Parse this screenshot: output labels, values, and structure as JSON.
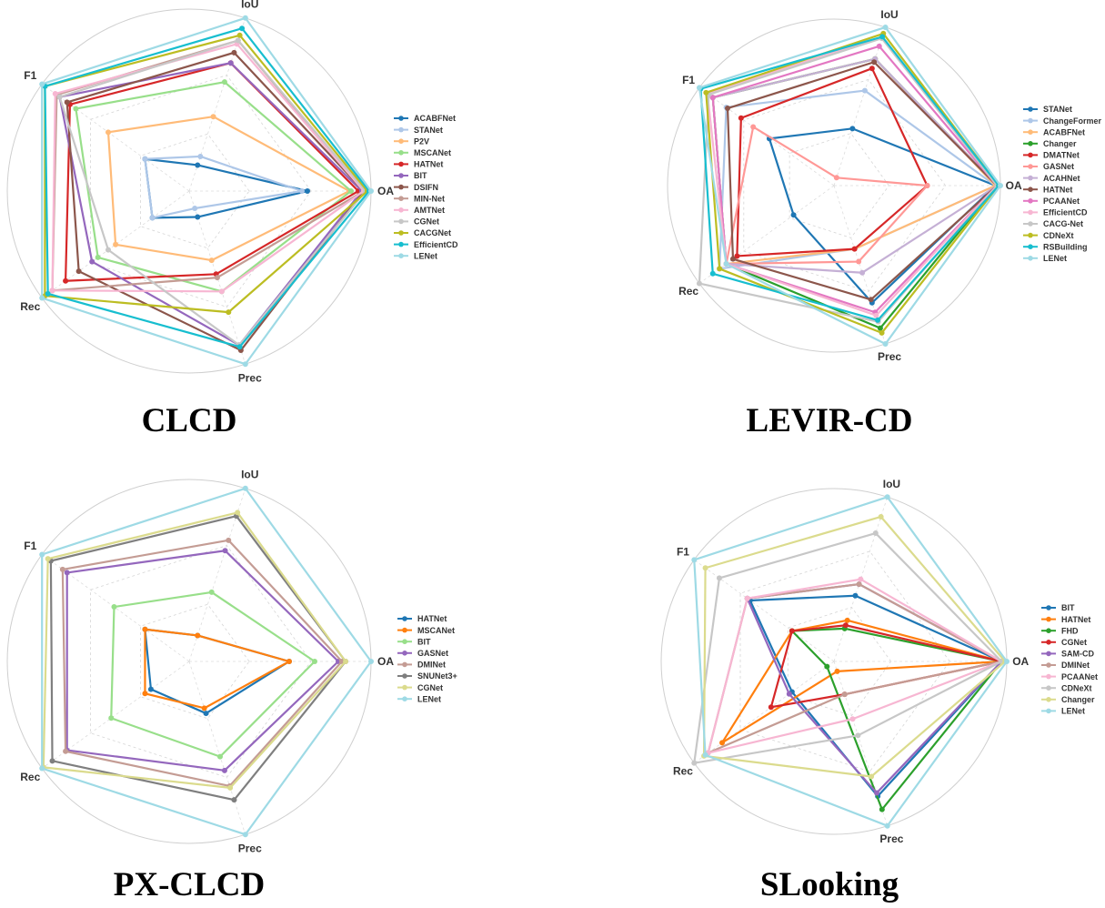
{
  "axes": [
    "OA",
    "IoU",
    "F1",
    "Rec",
    "Prec"
  ],
  "chart_data": [
    {
      "type": "radar",
      "title": "CLCD",
      "axes": [
        "OA",
        "IoU",
        "F1",
        "Rec",
        "Prec"
      ],
      "series": [
        {
          "name": "ACABFNet",
          "color": "#1f77b4",
          "values": [
            0.65,
            0.15,
            0.3,
            0.25,
            0.15
          ]
        },
        {
          "name": "STANet",
          "color": "#aec7e8",
          "values": [
            0.62,
            0.2,
            0.3,
            0.25,
            0.1
          ]
        },
        {
          "name": "P2V",
          "color": "#ffbb78",
          "values": [
            0.88,
            0.43,
            0.55,
            0.5,
            0.4
          ]
        },
        {
          "name": "MSCANet",
          "color": "#98df8a",
          "values": [
            0.89,
            0.63,
            0.77,
            0.62,
            0.58
          ]
        },
        {
          "name": "HATNet",
          "color": "#d62728",
          "values": [
            0.93,
            0.74,
            0.81,
            0.84,
            0.48
          ]
        },
        {
          "name": "BIT",
          "color": "#9467bd",
          "values": [
            0.95,
            0.74,
            0.88,
            0.66,
            0.89
          ]
        },
        {
          "name": "DSIFN",
          "color": "#8c564b",
          "values": [
            0.96,
            0.8,
            0.83,
            0.75,
            0.92
          ]
        },
        {
          "name": "MIN-Net",
          "color": "#c49c94",
          "values": [
            0.96,
            0.87,
            0.9,
            0.93,
            0.5
          ]
        },
        {
          "name": "AMTNet",
          "color": "#f7b6d2",
          "values": [
            0.96,
            0.85,
            0.91,
            0.93,
            0.58
          ]
        },
        {
          "name": "CGNet",
          "color": "#c7c7c7",
          "values": [
            0.97,
            0.87,
            0.88,
            0.55,
            0.89
          ]
        },
        {
          "name": "CACGNet",
          "color": "#bcbd22",
          "values": [
            0.98,
            0.9,
            0.98,
            0.98,
            0.7
          ]
        },
        {
          "name": "EfficientCD",
          "color": "#17becf",
          "values": [
            0.99,
            0.94,
            0.98,
            0.96,
            0.9
          ]
        },
        {
          "name": "LENet",
          "color": "#9edae5",
          "values": [
            1.0,
            1.0,
            1.0,
            1.0,
            1.0
          ]
        }
      ]
    },
    {
      "type": "radar",
      "title": "LEVIR-CD",
      "axes": [
        "OA",
        "IoU",
        "F1",
        "Rec",
        "Prec"
      ],
      "series": [
        {
          "name": "STANet",
          "color": "#1f77b4",
          "values": [
            0.97,
            0.36,
            0.48,
            0.3,
            0.74
          ]
        },
        {
          "name": "ChangeFormer",
          "color": "#aec7e8",
          "values": [
            0.97,
            0.6,
            0.8,
            0.85,
            0.4
          ]
        },
        {
          "name": "ACABFNet",
          "color": "#ffbb78",
          "values": [
            0.97,
            0.8,
            0.9,
            0.8,
            0.4
          ]
        },
        {
          "name": "Changer",
          "color": "#2ca02c",
          "values": [
            0.98,
            0.8,
            0.9,
            0.8,
            0.9
          ]
        },
        {
          "name": "DMATNet",
          "color": "#d62728",
          "values": [
            0.56,
            0.74,
            0.69,
            0.72,
            0.4
          ]
        },
        {
          "name": "GASNet",
          "color": "#ff9896",
          "values": [
            0.56,
            0.05,
            0.6,
            0.8,
            0.48
          ]
        },
        {
          "name": "ACAHNet",
          "color": "#c5b0d5",
          "values": [
            0.98,
            0.8,
            0.9,
            0.8,
            0.55
          ]
        },
        {
          "name": "HATNet",
          "color": "#8c564b",
          "values": [
            0.98,
            0.78,
            0.79,
            0.75,
            0.72
          ]
        },
        {
          "name": "PCAANet",
          "color": "#e377c2",
          "values": [
            0.98,
            0.88,
            0.9,
            0.8,
            0.8
          ]
        },
        {
          "name": "EfficientCD",
          "color": "#f7b6d2",
          "values": [
            0.98,
            0.94,
            0.94,
            0.8,
            0.82
          ]
        },
        {
          "name": "CACG-Net",
          "color": "#c7c7c7",
          "values": [
            0.98,
            0.93,
            0.93,
            1.0,
            0.86
          ]
        },
        {
          "name": "CDNeXt",
          "color": "#bcbd22",
          "values": [
            0.99,
            0.96,
            0.95,
            0.85,
            0.93
          ]
        },
        {
          "name": "RSBuilding",
          "color": "#17becf",
          "values": [
            0.99,
            0.94,
            0.99,
            0.9,
            0.85
          ]
        },
        {
          "name": "LENet",
          "color": "#9edae5",
          "values": [
            1.0,
            1.0,
            1.0,
            0.8,
            1.0
          ]
        }
      ]
    },
    {
      "type": "radar",
      "title": "PX-CLCD",
      "axes": [
        "OA",
        "IoU",
        "F1",
        "Rec",
        "Prec"
      ],
      "series": [
        {
          "name": "HATNet",
          "color": "#1f77b4",
          "values": [
            0.55,
            0.15,
            0.3,
            0.26,
            0.3
          ]
        },
        {
          "name": "MSCANet",
          "color": "#ff7f0e",
          "values": [
            0.55,
            0.15,
            0.3,
            0.3,
            0.27
          ]
        },
        {
          "name": "BIT",
          "color": "#98df8a",
          "values": [
            0.69,
            0.4,
            0.51,
            0.53,
            0.55
          ]
        },
        {
          "name": "GASNet",
          "color": "#9467bd",
          "values": [
            0.82,
            0.64,
            0.83,
            0.83,
            0.63
          ]
        },
        {
          "name": "DMINet",
          "color": "#c49c94",
          "values": [
            0.84,
            0.7,
            0.86,
            0.84,
            0.72
          ]
        },
        {
          "name": "SNUNet3+",
          "color": "#7f7f7f",
          "values": [
            0.86,
            0.84,
            0.94,
            0.93,
            0.8
          ]
        },
        {
          "name": "CGNet",
          "color": "#dbdb8d",
          "values": [
            0.86,
            0.86,
            0.96,
            0.99,
            0.73
          ]
        },
        {
          "name": "LENet",
          "color": "#9edae5",
          "values": [
            1.0,
            1.0,
            1.0,
            1.0,
            1.0
          ]
        }
      ]
    },
    {
      "type": "radar",
      "title": "SLooking",
      "axes": [
        "OA",
        "IoU",
        "F1",
        "Rec",
        "Prec"
      ],
      "series": [
        {
          "name": "BIT",
          "color": "#1f77b4",
          "values": [
            0.97,
            0.4,
            0.6,
            0.3,
            0.82
          ]
        },
        {
          "name": "HATNet",
          "color": "#ff7f0e",
          "values": [
            0.97,
            0.25,
            0.3,
            0.8,
            0.06
          ]
        },
        {
          "name": "FHD",
          "color": "#2ca02c",
          "values": [
            0.97,
            0.2,
            0.3,
            0.05,
            0.9
          ]
        },
        {
          "name": "CGNet",
          "color": "#d62728",
          "values": [
            0.97,
            0.22,
            0.3,
            0.45,
            0.2
          ]
        },
        {
          "name": "SAM-CD",
          "color": "#9467bd",
          "values": [
            0.97,
            0.47,
            0.62,
            0.32,
            0.8
          ]
        },
        {
          "name": "DMINet",
          "color": "#c49c94",
          "values": [
            0.97,
            0.47,
            0.62,
            0.9,
            0.2
          ]
        },
        {
          "name": "PCAANet",
          "color": "#f7b6d2",
          "values": [
            0.97,
            0.5,
            0.62,
            0.9,
            0.35
          ]
        },
        {
          "name": "CDNeXt",
          "color": "#c7c7c7",
          "values": [
            0.97,
            0.78,
            0.82,
            1.0,
            0.45
          ]
        },
        {
          "name": "Changer",
          "color": "#dbdb8d",
          "values": [
            0.99,
            0.88,
            0.92,
            0.93,
            0.7
          ]
        },
        {
          "name": "LENet",
          "color": "#9edae5",
          "values": [
            1.0,
            1.0,
            1.0,
            0.92,
            1.0
          ]
        }
      ]
    }
  ]
}
